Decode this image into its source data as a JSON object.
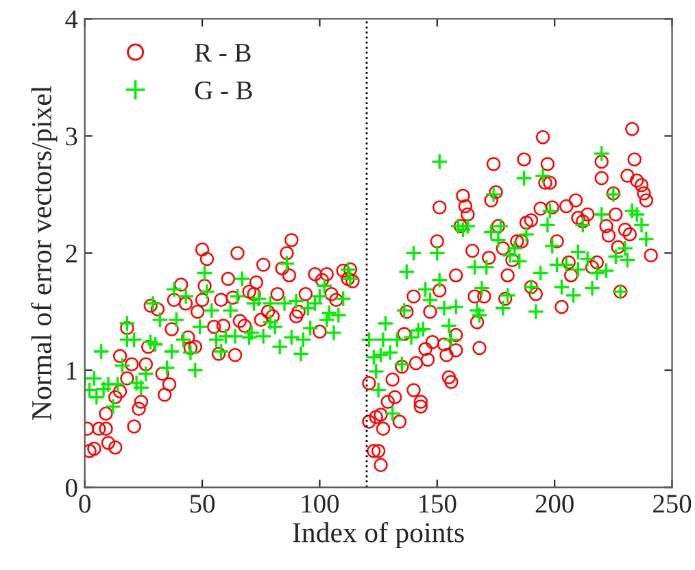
{
  "chart_data": {
    "type": "scatter",
    "xlabel": "Index of points",
    "ylabel": "Normal of error vectors/pixel",
    "xlim": [
      0,
      250
    ],
    "ylim": [
      0,
      4
    ],
    "xticks": [
      0,
      50,
      100,
      150,
      200,
      250
    ],
    "yticks": [
      0,
      1,
      2,
      3,
      4
    ],
    "grid": false,
    "legend": "top left",
    "ref_lines": [
      {
        "axis": "x",
        "value": 120,
        "color": "#000000",
        "line_style": "dotted"
      }
    ],
    "series": [
      {
        "name": "R - B",
        "color": "#ff0000",
        "marker": "circle",
        "x": [
          1,
          2,
          4,
          6,
          9,
          9,
          10,
          13,
          13,
          15,
          15,
          18,
          18,
          20,
          21,
          23,
          24,
          26,
          27,
          28,
          31,
          33,
          34,
          36,
          37,
          38,
          41,
          43,
          44,
          45,
          47,
          48,
          50,
          50,
          52,
          51,
          55,
          57,
          59,
          58,
          61,
          63,
          64,
          65,
          66,
          68,
          70,
          72,
          73,
          75,
          76,
          78,
          80,
          82,
          84,
          86,
          87,
          88,
          90,
          91,
          94,
          98,
          100,
          101,
          103,
          105,
          107,
          110,
          112,
          114,
          113,
          121,
          121,
          123,
          124,
          125,
          126,
          126,
          127,
          129,
          131,
          132,
          134,
          135,
          136,
          137,
          140,
          141,
          140,
          143,
          143,
          145,
          146,
          147,
          148,
          150,
          151,
          151,
          153,
          154,
          155,
          156,
          158,
          158,
          158,
          160,
          161,
          162,
          163,
          165,
          166,
          167,
          168,
          170,
          172,
          173,
          174,
          175,
          176,
          178,
          179,
          180,
          182,
          184,
          186,
          187,
          188,
          190,
          190,
          192,
          194,
          195,
          196,
          197,
          198,
          199,
          201,
          203,
          205,
          206,
          207,
          209,
          210,
          212,
          214,
          216,
          218,
          220,
          220,
          222,
          223,
          225,
          226,
          227,
          228,
          230,
          231,
          232,
          233,
          234,
          235,
          237,
          238,
          239,
          241
        ],
        "values": [
          0.5,
          0.31,
          0.33,
          0.5,
          0.63,
          0.5,
          0.38,
          0.34,
          0.77,
          0.82,
          1.12,
          0.93,
          1.36,
          1.05,
          0.52,
          0.67,
          0.73,
          1.05,
          1.2,
          1.55,
          1.52,
          0.97,
          0.79,
          0.88,
          1.35,
          1.6,
          1.73,
          1.57,
          1.28,
          1.19,
          1.2,
          1.5,
          1.6,
          2.03,
          1.95,
          1.72,
          1.37,
          1.14,
          1.38,
          1.6,
          1.78,
          1.62,
          1.13,
          2.0,
          1.42,
          1.38,
          1.67,
          1.65,
          1.75,
          1.43,
          1.9,
          1.5,
          1.46,
          1.65,
          1.87,
          2.0,
          1.81,
          2.11,
          1.46,
          1.5,
          1.65,
          1.82,
          1.33,
          1.77,
          1.82,
          1.65,
          1.6,
          1.85,
          1.78,
          1.76,
          1.86,
          0.89,
          0.56,
          0.31,
          0.6,
          0.31,
          0.62,
          0.19,
          0.5,
          0.73,
          0.92,
          0.77,
          0.56,
          1.03,
          1.31,
          1.5,
          0.83,
          1.06,
          1.63,
          0.69,
          0.73,
          1.18,
          1.09,
          1.5,
          1.24,
          2.1,
          1.68,
          2.39,
          1.22,
          1.13,
          0.94,
          0.9,
          1.3,
          1.17,
          1.81,
          2.23,
          2.49,
          2.4,
          2.33,
          2.02,
          1.63,
          1.41,
          1.19,
          1.63,
          1.96,
          2.45,
          2.76,
          2.52,
          2.23,
          2.04,
          1.61,
          1.81,
          1.94,
          2.1,
          2.1,
          2.8,
          2.26,
          2.28,
          1.71,
          1.65,
          2.38,
          2.99,
          2.6,
          2.76,
          2.6,
          2.39,
          2.1,
          1.54,
          2.4,
          1.92,
          1.81,
          2.45,
          2.3,
          2.27,
          2.33,
          1.88,
          1.92,
          2.78,
          2.64,
          2.23,
          2.15,
          2.51,
          2.33,
          2.05,
          1.67,
          2.2,
          2.66,
          2.16,
          3.06,
          2.8,
          2.62,
          2.58,
          2.51,
          2.45,
          1.98
        ]
      },
      {
        "name": "G - B",
        "color": "#00ee00",
        "marker": "cross",
        "x": [
          0,
          2,
          4,
          5,
          7,
          8,
          10,
          12,
          14,
          16,
          18,
          18,
          21,
          22,
          24,
          26,
          28,
          29,
          30,
          32,
          35,
          37,
          38,
          39,
          42,
          43,
          45,
          47,
          49,
          51,
          52,
          54,
          56,
          58,
          60,
          62,
          64,
          65,
          67,
          70,
          71,
          72,
          74,
          76,
          79,
          79,
          81,
          83,
          85,
          86,
          88,
          90,
          92,
          93,
          95,
          96,
          98,
          100,
          102,
          103,
          104,
          106,
          108,
          110,
          112,
          113,
          121,
          123,
          124,
          125,
          126,
          127,
          128,
          130,
          131,
          133,
          135,
          136,
          137,
          139,
          140,
          142,
          144,
          145,
          147,
          150,
          151,
          151,
          153,
          155,
          156,
          158,
          159,
          161,
          163,
          166,
          167,
          168,
          169,
          171,
          173,
          174,
          176,
          177,
          178,
          180,
          181,
          183,
          185,
          187,
          188,
          190,
          192,
          194,
          195,
          197,
          198,
          199,
          201,
          203,
          205,
          208,
          210,
          210,
          212,
          214,
          216,
          218,
          220,
          220,
          222,
          225,
          226,
          228,
          230,
          231,
          233,
          235,
          237,
          239
        ],
        "values": [
          0.93,
          0.83,
          0.93,
          0.77,
          1.16,
          0.84,
          0.88,
          0.69,
          0.88,
          1.04,
          1.4,
          1.26,
          1.26,
          0.89,
          0.85,
          0.97,
          1.24,
          1.57,
          1.22,
          1.43,
          1.02,
          1.16,
          1.69,
          1.43,
          1.26,
          1.63,
          1.15,
          1.0,
          1.37,
          1.83,
          1.67,
          1.51,
          1.26,
          1.16,
          1.29,
          1.51,
          1.29,
          1.63,
          1.78,
          1.28,
          1.32,
          1.57,
          1.61,
          1.29,
          1.41,
          1.57,
          1.37,
          1.2,
          1.57,
          1.91,
          1.28,
          1.59,
          1.14,
          1.26,
          1.53,
          1.36,
          1.57,
          1.63,
          1.72,
          1.43,
          1.49,
          1.32,
          1.47,
          1.61,
          1.86,
          1.78,
          1.26,
          1.11,
          0.99,
          0.83,
          1.13,
          1.26,
          1.4,
          1.15,
          0.63,
          1.26,
          1.05,
          1.51,
          1.84,
          1.28,
          2.0,
          1.34,
          1.35,
          1.69,
          1.6,
          2.0,
          1.77,
          2.78,
          1.53,
          1.38,
          1.26,
          1.54,
          2.23,
          2.2,
          2.23,
          1.88,
          1.51,
          1.47,
          1.7,
          1.88,
          2.18,
          2.5,
          2.11,
          2.23,
          1.53,
          1.64,
          1.98,
          2.04,
          1.93,
          2.64,
          2.16,
          1.71,
          1.5,
          1.83,
          2.66,
          2.24,
          2.36,
          2.06,
          1.9,
          1.71,
          1.9,
          1.64,
          1.86,
          2.01,
          2.24,
          1.95,
          1.7,
          1.83,
          2.85,
          2.33,
          1.85,
          2.5,
          1.97,
          1.67,
          2.04,
          1.94,
          2.36,
          2.33,
          2.24,
          2.12
        ]
      }
    ]
  }
}
